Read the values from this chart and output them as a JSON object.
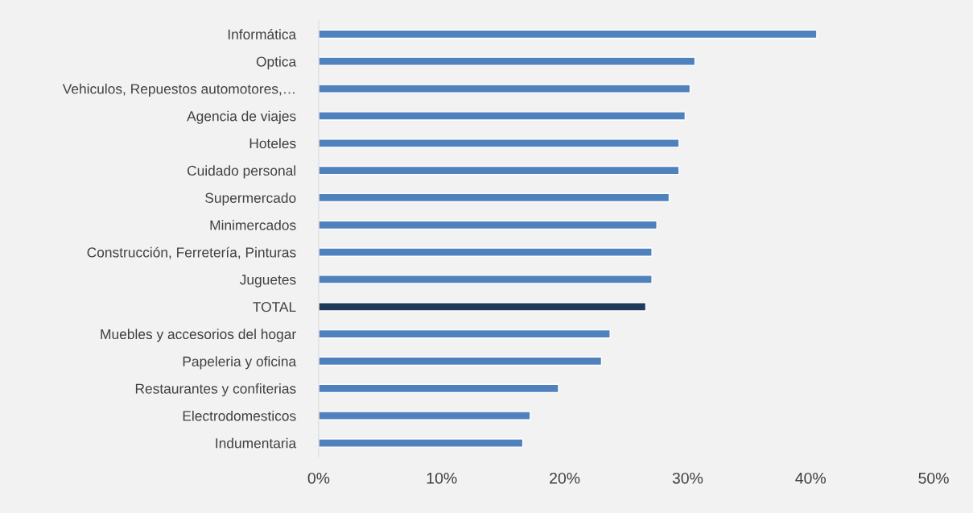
{
  "chart_data": {
    "type": "bar",
    "orientation": "horizontal",
    "categories": [
      "Informática",
      "Optica",
      "Vehiculos, Repuestos automotores,…",
      "Agencia de viajes",
      "Hoteles",
      "Cuidado personal",
      "Supermercado",
      "Minimercados",
      "Construcción, Ferretería, Pinturas",
      "Juguetes",
      "TOTAL",
      "Muebles y accesorios del hogar",
      "Papeleria y oficina",
      "Restaurantes y confiterias",
      "Electrodomesticos",
      "Indumentaria"
    ],
    "values": [
      40.5,
      30.6,
      30.2,
      29.8,
      29.3,
      29.3,
      28.5,
      27.5,
      27.1,
      27.1,
      26.6,
      23.7,
      23.0,
      19.5,
      17.2,
      16.6
    ],
    "colors": [
      "#4f81bd",
      "#4f81bd",
      "#4f81bd",
      "#4f81bd",
      "#4f81bd",
      "#4f81bd",
      "#4f81bd",
      "#4f81bd",
      "#4f81bd",
      "#4f81bd",
      "#1f3a5a",
      "#4f81bd",
      "#4f81bd",
      "#4f81bd",
      "#4f81bd",
      "#4f81bd"
    ],
    "xlim": [
      0,
      50
    ],
    "xticks": [
      {
        "value": 0,
        "label": "0%"
      },
      {
        "value": 10,
        "label": "10%"
      },
      {
        "value": 20,
        "label": "20%"
      },
      {
        "value": 30,
        "label": "30%"
      },
      {
        "value": 40,
        "label": "40%"
      },
      {
        "value": 50,
        "label": "50%"
      }
    ],
    "grid": false,
    "legend": false
  }
}
